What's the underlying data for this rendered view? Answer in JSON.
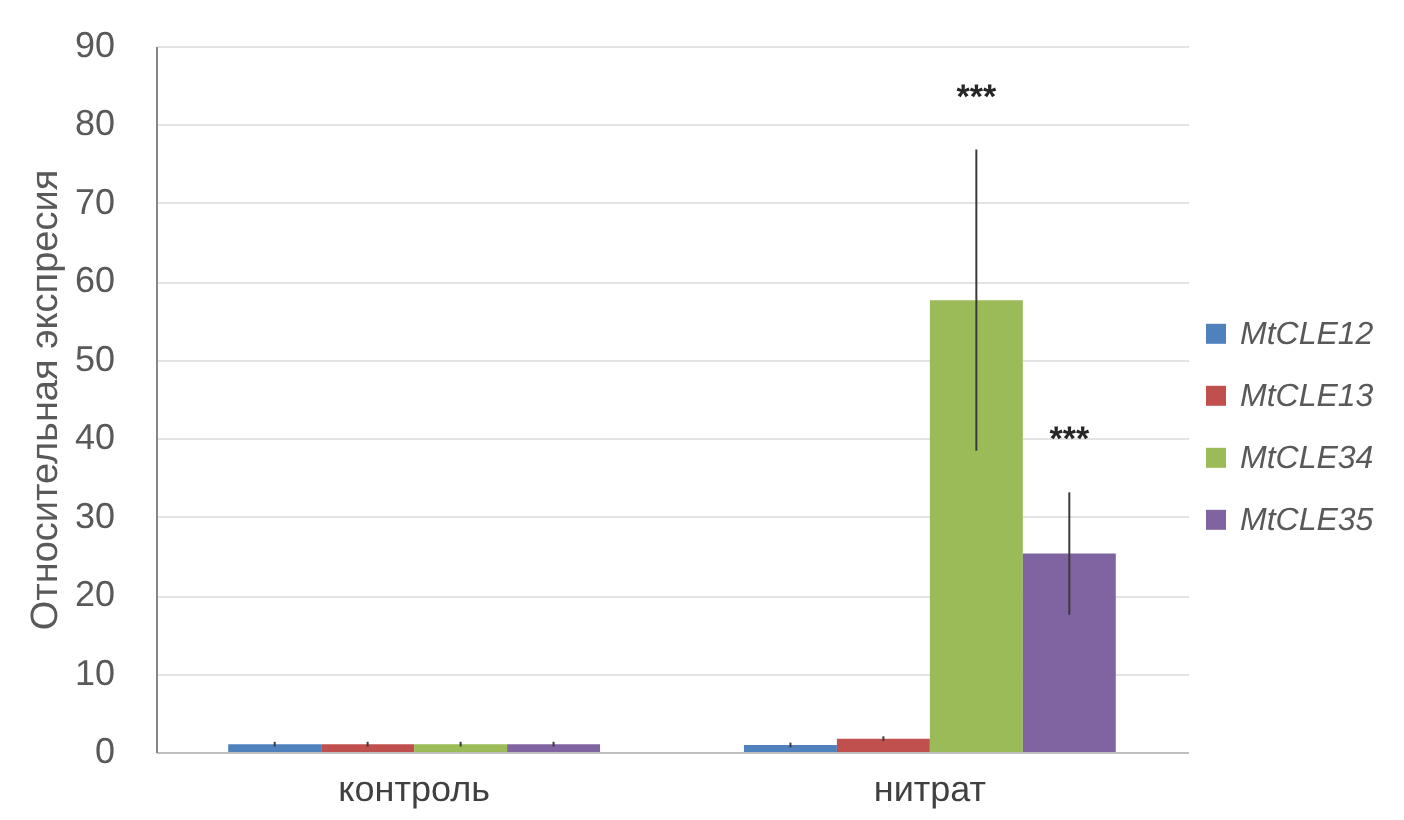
{
  "chart_data": {
    "type": "bar",
    "ylabel": "Относительная экспресия",
    "categories": [
      "контроль",
      "нитрат"
    ],
    "series": [
      {
        "name": "MtCLE12",
        "color": "#4f81bd",
        "values": [
          1.0,
          0.9
        ],
        "errors": [
          0.3,
          0.3
        ]
      },
      {
        "name": "MtCLE13",
        "color": "#c0504d",
        "values": [
          1.0,
          1.7
        ],
        "errors": [
          0.3,
          0.3
        ]
      },
      {
        "name": "MtCLE34",
        "color": "#9bbb59",
        "values": [
          1.0,
          57.6
        ],
        "errors": [
          0.3,
          19.2
        ]
      },
      {
        "name": "MtCLE35",
        "color": "#8064a2",
        "values": [
          1.0,
          25.3
        ],
        "errors": [
          0.3,
          7.8
        ]
      }
    ],
    "ylim": [
      0,
      90
    ],
    "yticks": [
      0,
      10,
      20,
      30,
      40,
      50,
      60,
      70,
      80,
      90
    ],
    "grid": "y",
    "legend": "right",
    "annotations": [
      "***",
      "***"
    ]
  }
}
